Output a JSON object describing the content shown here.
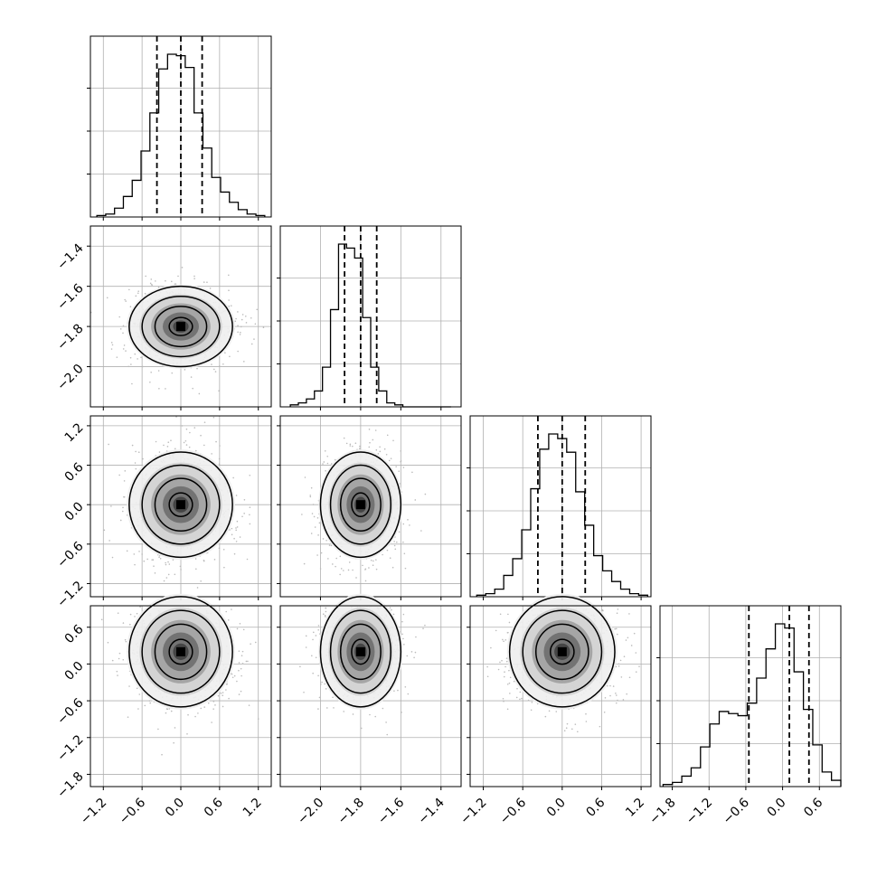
{
  "chart_data": {
    "type": "corner",
    "title": "",
    "grid": true,
    "parameter_ticks": [
      {
        "values": [
          -1.2,
          -0.6,
          0.0,
          0.6,
          1.2
        ],
        "labels": [
          "−1.2",
          "−0.6",
          "0.0",
          "0.6",
          "1.2"
        ]
      },
      {
        "values": [
          -2.0,
          -1.8,
          -1.6,
          -1.4
        ],
        "labels": [
          "−2.0",
          "−1.8",
          "−1.6",
          "−1.4"
        ]
      },
      {
        "values": [
          -1.2,
          -0.6,
          0.0,
          0.6,
          1.2
        ],
        "labels": [
          "−1.2",
          "−0.6",
          "0.0",
          "0.6",
          "1.2"
        ]
      },
      {
        "values": [
          -1.8,
          -1.2,
          -0.6,
          0.0,
          0.6
        ],
        "labels": [
          "−1.8",
          "−1.2",
          "−0.6",
          "0.0",
          "0.6"
        ]
      }
    ],
    "ranges": [
      [
        -1.4,
        1.4
      ],
      [
        -2.2,
        -1.3
      ],
      [
        -1.4,
        1.35
      ],
      [
        -2.0,
        0.95
      ]
    ],
    "quantiles": [
      [
        -0.37,
        0.0,
        0.33
      ],
      [
        -1.88,
        -1.8,
        -1.72
      ],
      [
        -0.37,
        0.0,
        0.35
      ],
      [
        -0.55,
        0.11,
        0.43
      ]
    ],
    "histograms": [
      {
        "edges_range": [
          -1.3,
          1.3
        ],
        "counts": [
          1,
          2,
          6,
          14,
          25,
          45,
          71,
          101,
          111,
          110,
          102,
          71,
          47,
          27,
          17,
          10,
          5,
          2,
          1
        ]
      },
      {
        "edges_range": [
          -2.15,
          -1.35
        ],
        "counts": [
          1,
          2,
          4,
          8,
          20,
          49,
          82,
          80,
          75,
          45,
          20,
          8,
          2,
          1,
          0,
          0,
          0,
          0,
          0,
          0
        ]
      },
      {
        "edges_range": [
          -1.3,
          1.3
        ],
        "counts": [
          1,
          2,
          5,
          14,
          25,
          44,
          71,
          97,
          107,
          104,
          95,
          69,
          47,
          27,
          17,
          10,
          5,
          2,
          1
        ]
      },
      {
        "edges_range": [
          -1.95,
          0.95
        ],
        "counts": [
          1,
          2,
          5,
          9,
          19,
          30,
          36,
          35,
          34,
          40,
          52,
          66,
          78,
          76,
          55,
          37,
          20,
          7,
          3
        ]
      }
    ],
    "blobs_2d": [
      {
        "cx": 0.0,
        "cy": -1.8,
        "sx": 0.4,
        "sy": 0.1,
        "rot": 0
      },
      {
        "cx": 0.0,
        "cy": 0.0,
        "sx": 0.4,
        "sy": 0.4,
        "rot": 0
      },
      {
        "cx": -1.8,
        "cy": 0.0,
        "sx": 0.1,
        "sy": 0.4,
        "rot": 0
      },
      {
        "cx": 0.0,
        "cy": 0.2,
        "sx": 0.4,
        "sy": 0.45,
        "rot": 0
      },
      {
        "cx": -1.8,
        "cy": 0.2,
        "sx": 0.1,
        "sy": 0.45,
        "rot": 0
      },
      {
        "cx": 0.0,
        "cy": 0.2,
        "sx": 0.4,
        "sy": 0.45,
        "rot": 0
      }
    ]
  }
}
